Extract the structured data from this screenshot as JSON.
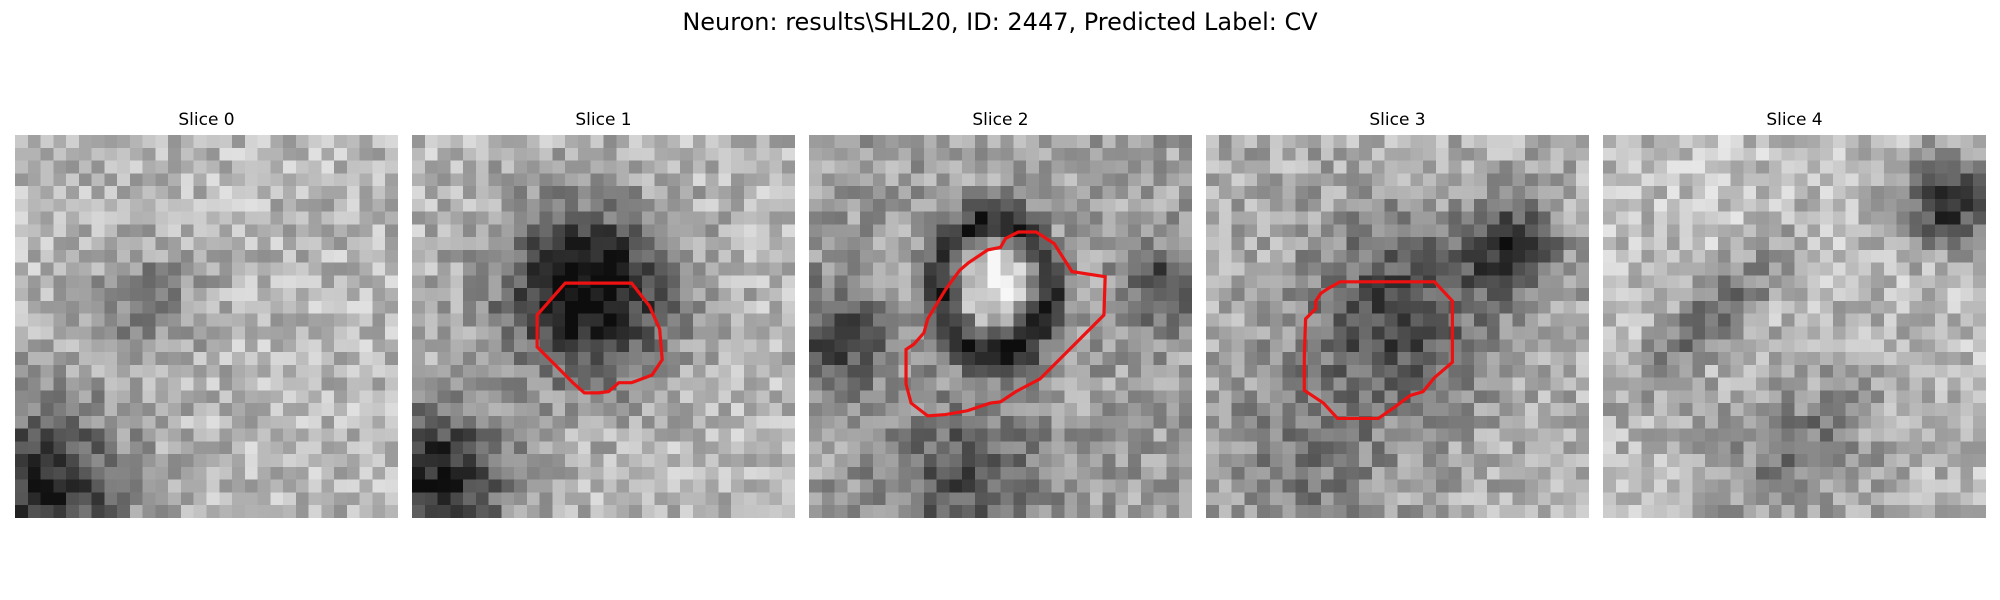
{
  "figure": {
    "title": "Neuron: results\\SHL20, ID: 2447, Predicted Label: CV"
  },
  "colors": {
    "background": "#ffffff",
    "contour": "#ee1111",
    "colormap": "gray"
  },
  "slices": [
    {
      "title": "Slice 0",
      "has_contour": false
    },
    {
      "title": "Slice 1",
      "has_contour": true
    },
    {
      "title": "Slice 2",
      "has_contour": true
    },
    {
      "title": "Slice 3",
      "has_contour": true
    },
    {
      "title": "Slice 4",
      "has_contour": false
    }
  ]
}
